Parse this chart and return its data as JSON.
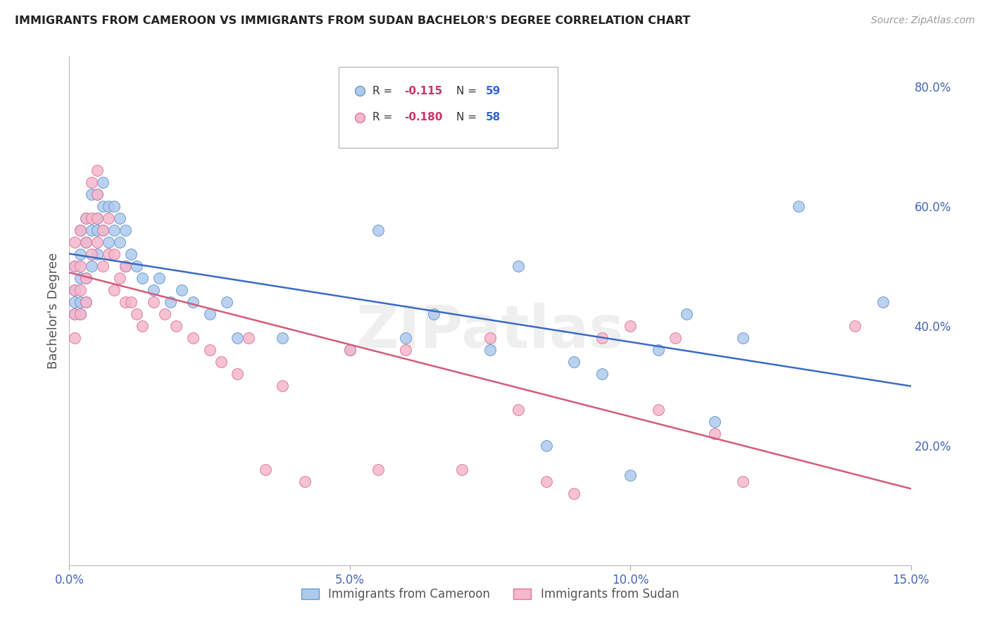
{
  "title": "IMMIGRANTS FROM CAMEROON VS IMMIGRANTS FROM SUDAN BACHELOR'S DEGREE CORRELATION CHART",
  "source": "Source: ZipAtlas.com",
  "ylabel": "Bachelor's Degree",
  "xlim": [
    0.0,
    0.15
  ],
  "ylim": [
    0.0,
    0.85
  ],
  "xticks": [
    0.0,
    0.05,
    0.1,
    0.15
  ],
  "xticklabels": [
    "0.0%",
    "5.0%",
    "10.0%",
    "15.0%"
  ],
  "yticks_right": [
    0.2,
    0.4,
    0.6,
    0.8
  ],
  "ytick_right_labels": [
    "20.0%",
    "40.0%",
    "60.0%",
    "80.0%"
  ],
  "cameroon_color": "#aecbee",
  "cameroon_edge": "#6699cc",
  "sudan_color": "#f5b8cc",
  "sudan_edge": "#dd7799",
  "trend_cameroon_color": "#3a6bc4",
  "trend_sudan_color": "#d45b7a",
  "r_color": "#cc3366",
  "n_color": "#3366cc",
  "watermark": "ZIPatlas",
  "background_color": "#ffffff",
  "grid_color": "#cccccc",
  "title_color": "#222222",
  "axis_label_color": "#4466bb",
  "cameroon_x": [
    0.001,
    0.001,
    0.001,
    0.001,
    0.002,
    0.002,
    0.002,
    0.002,
    0.002,
    0.003,
    0.003,
    0.003,
    0.003,
    0.004,
    0.004,
    0.004,
    0.005,
    0.005,
    0.005,
    0.005,
    0.006,
    0.006,
    0.006,
    0.007,
    0.007,
    0.008,
    0.008,
    0.009,
    0.009,
    0.01,
    0.01,
    0.011,
    0.012,
    0.013,
    0.015,
    0.016,
    0.018,
    0.02,
    0.022,
    0.025,
    0.028,
    0.03,
    0.038,
    0.05,
    0.055,
    0.06,
    0.065,
    0.075,
    0.08,
    0.085,
    0.09,
    0.095,
    0.1,
    0.105,
    0.11,
    0.115,
    0.12,
    0.13,
    0.145
  ],
  "cameroon_y": [
    0.42,
    0.44,
    0.46,
    0.5,
    0.42,
    0.44,
    0.48,
    0.52,
    0.56,
    0.44,
    0.48,
    0.54,
    0.58,
    0.5,
    0.56,
    0.62,
    0.52,
    0.56,
    0.58,
    0.62,
    0.56,
    0.6,
    0.64,
    0.54,
    0.6,
    0.56,
    0.6,
    0.54,
    0.58,
    0.5,
    0.56,
    0.52,
    0.5,
    0.48,
    0.46,
    0.48,
    0.44,
    0.46,
    0.44,
    0.42,
    0.44,
    0.38,
    0.38,
    0.36,
    0.56,
    0.38,
    0.42,
    0.36,
    0.5,
    0.2,
    0.34,
    0.32,
    0.15,
    0.36,
    0.42,
    0.24,
    0.38,
    0.6,
    0.44
  ],
  "sudan_x": [
    0.001,
    0.001,
    0.001,
    0.001,
    0.001,
    0.002,
    0.002,
    0.002,
    0.002,
    0.003,
    0.003,
    0.003,
    0.003,
    0.004,
    0.004,
    0.004,
    0.005,
    0.005,
    0.005,
    0.005,
    0.006,
    0.006,
    0.007,
    0.007,
    0.008,
    0.008,
    0.009,
    0.01,
    0.01,
    0.011,
    0.012,
    0.013,
    0.015,
    0.017,
    0.019,
    0.022,
    0.025,
    0.027,
    0.03,
    0.032,
    0.035,
    0.038,
    0.042,
    0.05,
    0.055,
    0.06,
    0.07,
    0.075,
    0.08,
    0.085,
    0.09,
    0.095,
    0.1,
    0.105,
    0.108,
    0.115,
    0.12,
    0.14
  ],
  "sudan_y": [
    0.38,
    0.42,
    0.46,
    0.5,
    0.54,
    0.42,
    0.46,
    0.5,
    0.56,
    0.44,
    0.48,
    0.54,
    0.58,
    0.52,
    0.58,
    0.64,
    0.54,
    0.58,
    0.62,
    0.66,
    0.5,
    0.56,
    0.52,
    0.58,
    0.46,
    0.52,
    0.48,
    0.44,
    0.5,
    0.44,
    0.42,
    0.4,
    0.44,
    0.42,
    0.4,
    0.38,
    0.36,
    0.34,
    0.32,
    0.38,
    0.16,
    0.3,
    0.14,
    0.36,
    0.16,
    0.36,
    0.16,
    0.38,
    0.26,
    0.14,
    0.12,
    0.38,
    0.4,
    0.26,
    0.38,
    0.22,
    0.14,
    0.4
  ]
}
